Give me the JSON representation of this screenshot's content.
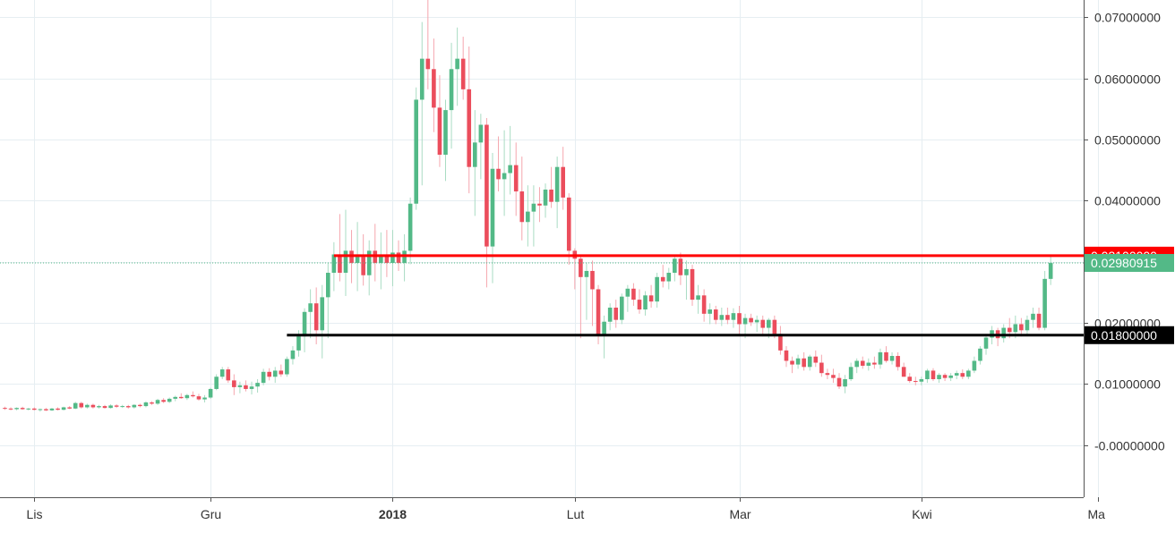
{
  "chart_data": {
    "type": "candlestick",
    "title": "",
    "xlabel": "",
    "ylabel": "",
    "ylim": [
      -0.0085,
      0.0728
    ],
    "grid": true,
    "y_ticks": [
      "0.07000000",
      "0.06000000",
      "0.05000000",
      "0.04000000",
      "0.03000000",
      "0.02000000",
      "0.01000000",
      "-0.00000000"
    ],
    "y_tick_values": [
      0.07,
      0.06,
      0.05,
      0.04,
      0.03,
      0.02,
      0.01,
      0.0
    ],
    "x_ticks": [
      {
        "label": "Lis",
        "index": 5,
        "bold": false
      },
      {
        "label": "Gru",
        "index": 35,
        "bold": false
      },
      {
        "label": "2018",
        "index": 66,
        "bold": true
      },
      {
        "label": "Lut",
        "index": 97,
        "bold": false
      },
      {
        "label": "Mar",
        "index": 125,
        "bold": false
      },
      {
        "label": "Kwi",
        "index": 156,
        "bold": false
      },
      {
        "label": "Ma",
        "index": 186,
        "bold": false
      }
    ],
    "horizontal_levels": [
      {
        "value": 0.031,
        "label": "0.03100000",
        "color": "#ff0000",
        "start_index": 56
      },
      {
        "value": 0.018,
        "label": "0.01800000",
        "color": "#000000",
        "start_index": 48
      }
    ],
    "last_price": {
      "value": 0.02980915,
      "label": "0.02980915",
      "color": "#53b987"
    },
    "colors": {
      "up": "#53b987",
      "down": "#eb4d5c",
      "wick_up": "#a9dcc3",
      "wick_down": "#f5a6ae"
    },
    "candles": [
      [
        0.0061,
        0.0063,
        0.0058,
        0.006
      ],
      [
        0.006,
        0.0062,
        0.0057,
        0.0059
      ],
      [
        0.0059,
        0.0062,
        0.0057,
        0.0061
      ],
      [
        0.0061,
        0.0063,
        0.0058,
        0.0059
      ],
      [
        0.0059,
        0.0061,
        0.0057,
        0.006
      ],
      [
        0.006,
        0.0062,
        0.0057,
        0.0058
      ],
      [
        0.0058,
        0.006,
        0.0055,
        0.0059
      ],
      [
        0.0059,
        0.0061,
        0.0056,
        0.0057
      ],
      [
        0.0057,
        0.0061,
        0.0056,
        0.006
      ],
      [
        0.006,
        0.0062,
        0.0057,
        0.0058
      ],
      [
        0.0058,
        0.0063,
        0.0057,
        0.0062
      ],
      [
        0.0062,
        0.0064,
        0.0059,
        0.006
      ],
      [
        0.006,
        0.0071,
        0.0059,
        0.0069
      ],
      [
        0.0069,
        0.0071,
        0.006,
        0.0062
      ],
      [
        0.0062,
        0.0068,
        0.006,
        0.0066
      ],
      [
        0.0066,
        0.0068,
        0.006,
        0.0062
      ],
      [
        0.0062,
        0.0066,
        0.006,
        0.0064
      ],
      [
        0.0064,
        0.0066,
        0.006,
        0.0061
      ],
      [
        0.0061,
        0.0067,
        0.006,
        0.0065
      ],
      [
        0.0065,
        0.0067,
        0.0061,
        0.0063
      ],
      [
        0.0063,
        0.0066,
        0.0061,
        0.0064
      ],
      [
        0.0064,
        0.0066,
        0.006,
        0.0062
      ],
      [
        0.0062,
        0.0067,
        0.006,
        0.0066
      ],
      [
        0.0066,
        0.0068,
        0.0062,
        0.0064
      ],
      [
        0.0064,
        0.0072,
        0.0062,
        0.007
      ],
      [
        0.007,
        0.0072,
        0.0066,
        0.0068
      ],
      [
        0.0068,
        0.0076,
        0.0066,
        0.0074
      ],
      [
        0.0074,
        0.0077,
        0.0069,
        0.0071
      ],
      [
        0.0071,
        0.0078,
        0.0069,
        0.0076
      ],
      [
        0.0076,
        0.0081,
        0.0072,
        0.0079
      ],
      [
        0.0079,
        0.0085,
        0.0076,
        0.0077
      ],
      [
        0.0077,
        0.0084,
        0.0074,
        0.0082
      ],
      [
        0.0082,
        0.0088,
        0.0078,
        0.008
      ],
      [
        0.008,
        0.0084,
        0.0073,
        0.0075
      ],
      [
        0.0075,
        0.0082,
        0.007,
        0.0078
      ],
      [
        0.0078,
        0.0094,
        0.0076,
        0.0092
      ],
      [
        0.0092,
        0.0116,
        0.009,
        0.0112
      ],
      [
        0.0112,
        0.0128,
        0.0108,
        0.0124
      ],
      [
        0.0124,
        0.0128,
        0.0102,
        0.0106
      ],
      [
        0.0106,
        0.0116,
        0.0082,
        0.0095
      ],
      [
        0.0095,
        0.0104,
        0.0085,
        0.0098
      ],
      [
        0.0098,
        0.0106,
        0.0088,
        0.0092
      ],
      [
        0.0092,
        0.0104,
        0.0083,
        0.0096
      ],
      [
        0.0096,
        0.0108,
        0.0086,
        0.0102
      ],
      [
        0.0102,
        0.0125,
        0.0098,
        0.012
      ],
      [
        0.012,
        0.0126,
        0.0106,
        0.0112
      ],
      [
        0.0112,
        0.0128,
        0.0102,
        0.0122
      ],
      [
        0.0122,
        0.0132,
        0.0112,
        0.0116
      ],
      [
        0.0116,
        0.0145,
        0.0112,
        0.0141
      ],
      [
        0.0141,
        0.0162,
        0.0132,
        0.0155
      ],
      [
        0.0155,
        0.0188,
        0.0145,
        0.0178
      ],
      [
        0.0178,
        0.0224,
        0.0152,
        0.0218
      ],
      [
        0.0218,
        0.0255,
        0.0175,
        0.0232
      ],
      [
        0.0232,
        0.0258,
        0.0165,
        0.0188
      ],
      [
        0.0188,
        0.0262,
        0.0142,
        0.0242
      ],
      [
        0.0242,
        0.0298,
        0.0175,
        0.0282
      ],
      [
        0.0282,
        0.0332,
        0.0252,
        0.0312
      ],
      [
        0.0312,
        0.0378,
        0.0268,
        0.0282
      ],
      [
        0.0282,
        0.0385,
        0.0244,
        0.0318
      ],
      [
        0.0318,
        0.0352,
        0.0265,
        0.0298
      ],
      [
        0.0298,
        0.0365,
        0.0252,
        0.0308
      ],
      [
        0.0308,
        0.0345,
        0.0261,
        0.0278
      ],
      [
        0.0278,
        0.0335,
        0.0245,
        0.0318
      ],
      [
        0.0318,
        0.0362,
        0.0268,
        0.0298
      ],
      [
        0.0298,
        0.0348,
        0.0255,
        0.0311
      ],
      [
        0.0311,
        0.0352,
        0.0275,
        0.0298
      ],
      [
        0.0298,
        0.0352,
        0.026,
        0.0315
      ],
      [
        0.0315,
        0.0335,
        0.0285,
        0.0298
      ],
      [
        0.0298,
        0.0345,
        0.0268,
        0.0318
      ],
      [
        0.0318,
        0.0405,
        0.0296,
        0.0395
      ],
      [
        0.0395,
        0.0585,
        0.0385,
        0.0565
      ],
      [
        0.0565,
        0.0692,
        0.0425,
        0.0632
      ],
      [
        0.0632,
        0.0745,
        0.0582,
        0.0615
      ],
      [
        0.0615,
        0.0665,
        0.0512,
        0.0552
      ],
      [
        0.0552,
        0.0605,
        0.0455,
        0.0475
      ],
      [
        0.0475,
        0.0565,
        0.0432,
        0.0548
      ],
      [
        0.0548,
        0.0658,
        0.0485,
        0.0615
      ],
      [
        0.0615,
        0.0683,
        0.0555,
        0.0632
      ],
      [
        0.0632,
        0.0668,
        0.0565,
        0.0582
      ],
      [
        0.0582,
        0.0652,
        0.0412,
        0.0455
      ],
      [
        0.0455,
        0.0548,
        0.0375,
        0.0495
      ],
      [
        0.0495,
        0.0542,
        0.0435,
        0.0524
      ],
      [
        0.0524,
        0.0535,
        0.0258,
        0.0325
      ],
      [
        0.0325,
        0.0478,
        0.0265,
        0.0452
      ],
      [
        0.0452,
        0.0505,
        0.0415,
        0.0435
      ],
      [
        0.0435,
        0.0515,
        0.0375,
        0.0445
      ],
      [
        0.0445,
        0.0522,
        0.041,
        0.0458
      ],
      [
        0.0458,
        0.0495,
        0.0375,
        0.0415
      ],
      [
        0.0415,
        0.0472,
        0.0335,
        0.0365
      ],
      [
        0.0365,
        0.0425,
        0.0325,
        0.0382
      ],
      [
        0.0382,
        0.0425,
        0.0325,
        0.0395
      ],
      [
        0.0395,
        0.0422,
        0.0365,
        0.0392
      ],
      [
        0.0392,
        0.0428,
        0.0372,
        0.0418
      ],
      [
        0.0418,
        0.0455,
        0.0388,
        0.0398
      ],
      [
        0.0398,
        0.0472,
        0.0355,
        0.0455
      ],
      [
        0.0455,
        0.0488,
        0.0385,
        0.0405
      ],
      [
        0.0405,
        0.0412,
        0.0295,
        0.0318
      ],
      [
        0.0318,
        0.0322,
        0.0255,
        0.0305
      ],
      [
        0.0305,
        0.0312,
        0.0175,
        0.0275
      ],
      [
        0.0275,
        0.0298,
        0.0205,
        0.0285
      ],
      [
        0.0285,
        0.0302,
        0.0195,
        0.0255
      ],
      [
        0.0255,
        0.0262,
        0.0165,
        0.018
      ],
      [
        0.018,
        0.0212,
        0.0142,
        0.0202
      ],
      [
        0.0202,
        0.0232,
        0.0188,
        0.0225
      ],
      [
        0.0225,
        0.0238,
        0.0192,
        0.0205
      ],
      [
        0.0205,
        0.0248,
        0.0198,
        0.0243
      ],
      [
        0.0243,
        0.0262,
        0.0218,
        0.0256
      ],
      [
        0.0256,
        0.0265,
        0.0228,
        0.0238
      ],
      [
        0.0238,
        0.0255,
        0.0215,
        0.0222
      ],
      [
        0.0222,
        0.0252,
        0.0212,
        0.0245
      ],
      [
        0.0245,
        0.0262,
        0.0225,
        0.0235
      ],
      [
        0.0235,
        0.0282,
        0.0225,
        0.0275
      ],
      [
        0.0275,
        0.0295,
        0.0258,
        0.0268
      ],
      [
        0.0268,
        0.029,
        0.0255,
        0.0282
      ],
      [
        0.0282,
        0.0312,
        0.0268,
        0.0305
      ],
      [
        0.0305,
        0.0315,
        0.0262,
        0.0278
      ],
      [
        0.0278,
        0.0302,
        0.0238,
        0.0288
      ],
      [
        0.0288,
        0.0295,
        0.0228,
        0.0238
      ],
      [
        0.0238,
        0.0262,
        0.0215,
        0.0245
      ],
      [
        0.0245,
        0.0255,
        0.0202,
        0.0215
      ],
      [
        0.0215,
        0.0232,
        0.0198,
        0.0222
      ],
      [
        0.0222,
        0.0228,
        0.0198,
        0.0205
      ],
      [
        0.0205,
        0.0225,
        0.0195,
        0.0213
      ],
      [
        0.0213,
        0.0225,
        0.0198,
        0.0205
      ],
      [
        0.0205,
        0.0224,
        0.0192,
        0.0216
      ],
      [
        0.0216,
        0.0228,
        0.0178,
        0.0198
      ],
      [
        0.0198,
        0.0215,
        0.0175,
        0.0208
      ],
      [
        0.0208,
        0.0215,
        0.0195,
        0.0201
      ],
      [
        0.0201,
        0.0212,
        0.0185,
        0.0205
      ],
      [
        0.0205,
        0.0212,
        0.0178,
        0.0192
      ],
      [
        0.0192,
        0.0208,
        0.0175,
        0.0205
      ],
      [
        0.0205,
        0.0212,
        0.0175,
        0.0182
      ],
      [
        0.0182,
        0.0195,
        0.0148,
        0.0155
      ],
      [
        0.0155,
        0.0162,
        0.0128,
        0.0138
      ],
      [
        0.0138,
        0.0145,
        0.0118,
        0.0132
      ],
      [
        0.0132,
        0.0148,
        0.0125,
        0.0142
      ],
      [
        0.0142,
        0.0152,
        0.0122,
        0.0128
      ],
      [
        0.0128,
        0.0148,
        0.0122,
        0.0145
      ],
      [
        0.0145,
        0.0155,
        0.0128,
        0.0135
      ],
      [
        0.0135,
        0.0148,
        0.0112,
        0.0118
      ],
      [
        0.0118,
        0.0125,
        0.0108,
        0.0115
      ],
      [
        0.0115,
        0.0125,
        0.0102,
        0.011
      ],
      [
        0.011,
        0.0118,
        0.0092,
        0.0096
      ],
      [
        0.0096,
        0.0115,
        0.0085,
        0.0108
      ],
      [
        0.0108,
        0.0135,
        0.0105,
        0.0128
      ],
      [
        0.0128,
        0.0142,
        0.0118,
        0.0138
      ],
      [
        0.0138,
        0.0145,
        0.0125,
        0.013
      ],
      [
        0.013,
        0.0142,
        0.0122,
        0.0135
      ],
      [
        0.0135,
        0.0145,
        0.0125,
        0.0132
      ],
      [
        0.0132,
        0.0158,
        0.0125,
        0.0152
      ],
      [
        0.0152,
        0.0162,
        0.0135,
        0.0138
      ],
      [
        0.0138,
        0.0152,
        0.0132,
        0.0146
      ],
      [
        0.0146,
        0.0152,
        0.0122,
        0.0128
      ],
      [
        0.0128,
        0.0135,
        0.0112,
        0.0112
      ],
      [
        0.0112,
        0.0118,
        0.0102,
        0.0105
      ],
      [
        0.0105,
        0.0112,
        0.0098,
        0.0104
      ],
      [
        0.0104,
        0.0112,
        0.0098,
        0.0108
      ],
      [
        0.0108,
        0.0125,
        0.0102,
        0.0122
      ],
      [
        0.0122,
        0.0126,
        0.0105,
        0.0108
      ],
      [
        0.0108,
        0.0118,
        0.0102,
        0.0115
      ],
      [
        0.0115,
        0.0118,
        0.0105,
        0.011
      ],
      [
        0.011,
        0.0118,
        0.0105,
        0.0114
      ],
      [
        0.0114,
        0.0122,
        0.0108,
        0.0118
      ],
      [
        0.0118,
        0.0124,
        0.0108,
        0.0112
      ],
      [
        0.0112,
        0.0125,
        0.0108,
        0.0122
      ],
      [
        0.0122,
        0.0145,
        0.0118,
        0.0138
      ],
      [
        0.0138,
        0.0162,
        0.0132,
        0.0158
      ],
      [
        0.0158,
        0.0182,
        0.0148,
        0.0176
      ],
      [
        0.0176,
        0.0195,
        0.0165,
        0.0188
      ],
      [
        0.0188,
        0.0192,
        0.0162,
        0.0175
      ],
      [
        0.0175,
        0.0198,
        0.0168,
        0.0192
      ],
      [
        0.0192,
        0.0208,
        0.0175,
        0.0185
      ],
      [
        0.0185,
        0.0212,
        0.0175,
        0.0198
      ],
      [
        0.0198,
        0.0208,
        0.0178,
        0.0188
      ],
      [
        0.0188,
        0.0212,
        0.0178,
        0.0205
      ],
      [
        0.0205,
        0.0225,
        0.0192,
        0.0215
      ],
      [
        0.0215,
        0.0225,
        0.0188,
        0.0192
      ],
      [
        0.0192,
        0.0285,
        0.0188,
        0.0272
      ],
      [
        0.0272,
        0.031,
        0.0262,
        0.0298
      ]
    ]
  }
}
